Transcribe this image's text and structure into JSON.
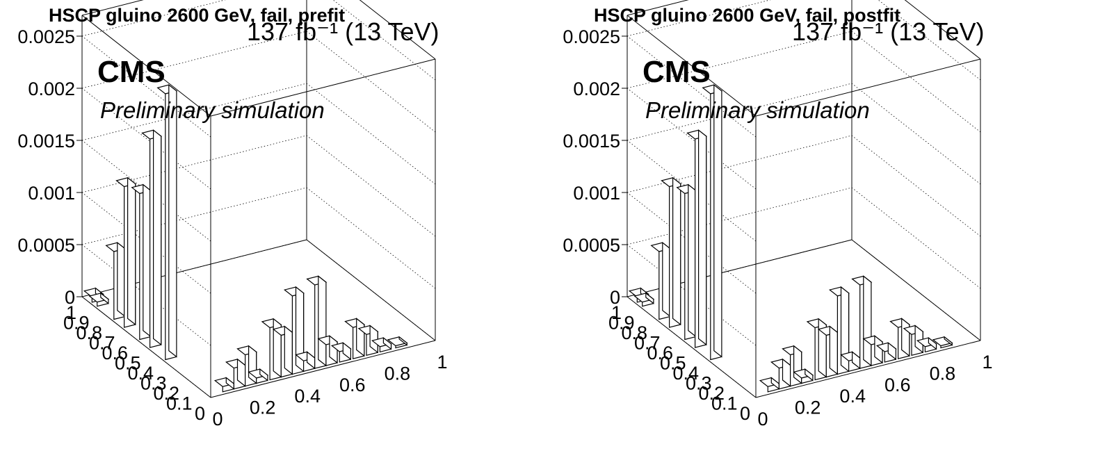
{
  "chart_data": [
    {
      "type": "bar3d",
      "title": "HSCP gluino 2600 GeV, fail, prefit",
      "lumi_label": "137 fb⁻¹ (13 TeV)",
      "experiment_label": "CMS",
      "status_label": "Preliminary simulation",
      "zlim": [
        0,
        0.0027
      ],
      "z_ticks": [
        "0",
        "0.0005",
        "0.001",
        "0.0015",
        "0.002",
        "0.0025"
      ],
      "x_ticks": [
        "0",
        "0.2",
        "0.4",
        "0.6",
        "0.8",
        "1"
      ],
      "y_ticks": [
        "0",
        "0.1",
        "0.2",
        "0.3",
        "0.4",
        "0.5",
        "0.6",
        "0.7",
        "0.8",
        "0.9",
        "1"
      ],
      "grid": true,
      "bars": [
        {
          "x": 0.035,
          "y": 0.97,
          "value": 5e-05
        },
        {
          "x": 0.035,
          "y": 0.93,
          "value": 4e-05
        },
        {
          "x": 0.035,
          "y": 0.8,
          "value": 0.00065
        },
        {
          "x": 0.035,
          "y": 0.72,
          "value": 0.00135
        },
        {
          "x": 0.035,
          "y": 0.6,
          "value": 0.0014
        },
        {
          "x": 0.035,
          "y": 0.52,
          "value": 0.002
        },
        {
          "x": 0.035,
          "y": 0.4,
          "value": 0.00255
        },
        {
          "x": 0.09,
          "y": 0.05,
          "value": 5e-05
        },
        {
          "x": 0.14,
          "y": 0.05,
          "value": 0.0002
        },
        {
          "x": 0.19,
          "y": 0.05,
          "value": 0.0003
        },
        {
          "x": 0.24,
          "y": 0.05,
          "value": 5e-05
        },
        {
          "x": 0.3,
          "y": 0.05,
          "value": 0.0005
        },
        {
          "x": 0.35,
          "y": 0.05,
          "value": 0.0004
        },
        {
          "x": 0.4,
          "y": 0.05,
          "value": 0.00075
        },
        {
          "x": 0.45,
          "y": 0.05,
          "value": 0.0001
        },
        {
          "x": 0.5,
          "y": 0.05,
          "value": 0.0008
        },
        {
          "x": 0.55,
          "y": 0.05,
          "value": 0.0002
        },
        {
          "x": 0.61,
          "y": 0.05,
          "value": 0.0001
        },
        {
          "x": 0.67,
          "y": 0.05,
          "value": 0.0003
        },
        {
          "x": 0.73,
          "y": 0.05,
          "value": 0.0002
        },
        {
          "x": 0.79,
          "y": 0.05,
          "value": 5e-05
        },
        {
          "x": 0.86,
          "y": 0.05,
          "value": 2e-05
        }
      ]
    },
    {
      "type": "bar3d",
      "title": "HSCP gluino 2600 GeV, fail, postfit",
      "lumi_label": "137 fb⁻¹ (13 TeV)",
      "experiment_label": "CMS",
      "status_label": "Preliminary simulation",
      "zlim": [
        0,
        0.0027
      ],
      "z_ticks": [
        "0",
        "0.0005",
        "0.001",
        "0.0015",
        "0.002",
        "0.0025"
      ],
      "x_ticks": [
        "0",
        "0.2",
        "0.4",
        "0.6",
        "0.8",
        "1"
      ],
      "y_ticks": [
        "0",
        "0.1",
        "0.2",
        "0.3",
        "0.4",
        "0.5",
        "0.6",
        "0.7",
        "0.8",
        "0.9",
        "1"
      ],
      "grid": true,
      "bars": [
        {
          "x": 0.035,
          "y": 0.97,
          "value": 5e-05
        },
        {
          "x": 0.035,
          "y": 0.93,
          "value": 4e-05
        },
        {
          "x": 0.035,
          "y": 0.8,
          "value": 0.00065
        },
        {
          "x": 0.035,
          "y": 0.72,
          "value": 0.00135
        },
        {
          "x": 0.035,
          "y": 0.6,
          "value": 0.0014
        },
        {
          "x": 0.035,
          "y": 0.52,
          "value": 0.002
        },
        {
          "x": 0.035,
          "y": 0.4,
          "value": 0.00255
        },
        {
          "x": 0.09,
          "y": 0.05,
          "value": 5e-05
        },
        {
          "x": 0.14,
          "y": 0.05,
          "value": 0.0002
        },
        {
          "x": 0.19,
          "y": 0.05,
          "value": 0.0003
        },
        {
          "x": 0.24,
          "y": 0.05,
          "value": 5e-05
        },
        {
          "x": 0.3,
          "y": 0.05,
          "value": 0.0005
        },
        {
          "x": 0.35,
          "y": 0.05,
          "value": 0.0004
        },
        {
          "x": 0.4,
          "y": 0.05,
          "value": 0.00075
        },
        {
          "x": 0.45,
          "y": 0.05,
          "value": 0.0001
        },
        {
          "x": 0.5,
          "y": 0.05,
          "value": 0.0008
        },
        {
          "x": 0.55,
          "y": 0.05,
          "value": 0.0002
        },
        {
          "x": 0.61,
          "y": 0.05,
          "value": 0.0001
        },
        {
          "x": 0.67,
          "y": 0.05,
          "value": 0.0003
        },
        {
          "x": 0.73,
          "y": 0.05,
          "value": 0.0002
        },
        {
          "x": 0.79,
          "y": 0.05,
          "value": 5e-05
        },
        {
          "x": 0.86,
          "y": 0.05,
          "value": 2e-05
        }
      ]
    }
  ]
}
